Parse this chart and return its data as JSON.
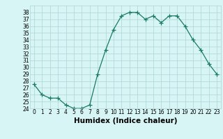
{
  "x": [
    0,
    1,
    2,
    3,
    4,
    5,
    6,
    7,
    8,
    9,
    10,
    11,
    12,
    13,
    14,
    15,
    16,
    17,
    18,
    19,
    20,
    21,
    22,
    23
  ],
  "y": [
    27.5,
    26.0,
    25.5,
    25.5,
    24.5,
    24.0,
    24.0,
    24.5,
    29.0,
    32.5,
    35.5,
    37.5,
    38.0,
    38.0,
    37.0,
    37.5,
    36.5,
    37.5,
    37.5,
    36.0,
    34.0,
    32.5,
    30.5,
    29.0
  ],
  "line_color": "#1a7a62",
  "marker": "+",
  "marker_size": 4,
  "bg_color": "#d8f5f5",
  "grid_color": "#aed4d4",
  "xlabel": "Humidex (Indice chaleur)",
  "ylim": [
    24,
    39
  ],
  "xlim": [
    -0.5,
    23.5
  ],
  "yticks": [
    24,
    25,
    26,
    27,
    28,
    29,
    30,
    31,
    32,
    33,
    34,
    35,
    36,
    37,
    38
  ],
  "xticks": [
    0,
    1,
    2,
    3,
    4,
    5,
    6,
    7,
    8,
    9,
    10,
    11,
    12,
    13,
    14,
    15,
    16,
    17,
    18,
    19,
    20,
    21,
    22,
    23
  ],
  "tick_fontsize": 5.5,
  "xlabel_fontsize": 7.5
}
